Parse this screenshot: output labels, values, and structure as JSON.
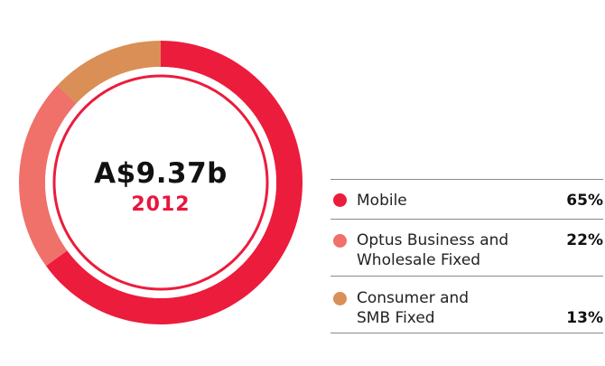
{
  "chart_data": {
    "type": "pie",
    "center": {
      "title": "A$9.37b",
      "subtitle": "2012"
    },
    "slices": [
      {
        "label": "Mobile",
        "value": 65,
        "display": "65%",
        "color": "#ec1c3c"
      },
      {
        "label": "Optus Business and\nWholesale Fixed",
        "value": 22,
        "display": "22%",
        "color": "#f0706a"
      },
      {
        "label": "Consumer and\nSMB Fixed",
        "value": 13,
        "display": "13%",
        "color": "#d98f56"
      }
    ]
  }
}
